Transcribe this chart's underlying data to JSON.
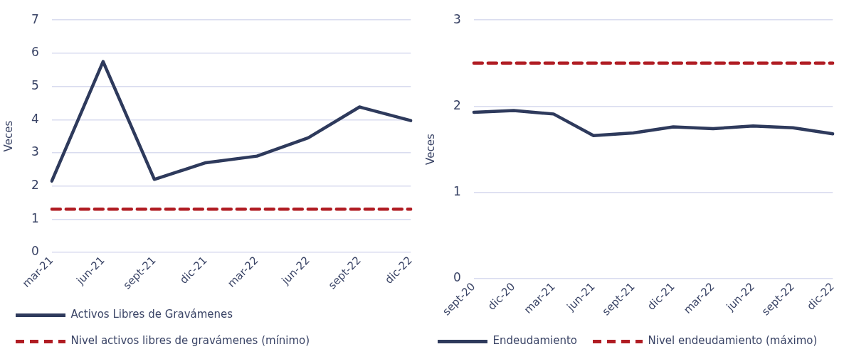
{
  "chart_data": [
    {
      "type": "line",
      "ylabel": "Veces",
      "categories": [
        "mar-21",
        "jun-21",
        "sept-21",
        "dic-21",
        "mar-22",
        "jun-22",
        "sept-22",
        "dic-22"
      ],
      "series": [
        {
          "name": "Activos Libres de Gravámenes",
          "color": "#2e3a5c",
          "values": [
            2.15,
            5.75,
            2.2,
            2.7,
            2.9,
            3.45,
            4.38,
            3.97
          ],
          "line_style": "solid"
        },
        {
          "name": "Nivel activos libres de gravámenes (mínimo)",
          "color": "#b01c23",
          "values": [
            1.3,
            1.3,
            1.3,
            1.3,
            1.3,
            1.3,
            1.3,
            1.3
          ],
          "line_style": "dashed"
        }
      ],
      "ylim": [
        0,
        7
      ],
      "yticks": [
        0,
        1,
        2,
        3,
        4,
        5,
        6,
        7
      ],
      "grid": "y",
      "legend": "bottom",
      "marker": "none"
    },
    {
      "type": "line",
      "ylabel": "Veces",
      "categories": [
        "sept-20",
        "dic-20",
        "mar-21",
        "jun-21",
        "sept-21",
        "dic-21",
        "mar-22",
        "jun-22",
        "sept-22",
        "dic-22"
      ],
      "series": [
        {
          "name": "Endeudamiento",
          "color": "#2e3a5c",
          "values": [
            1.93,
            1.95,
            1.91,
            1.66,
            1.69,
            1.76,
            1.74,
            1.77,
            1.75,
            1.68
          ],
          "line_style": "solid"
        },
        {
          "name": "Nivel endeudamiento (máximo)",
          "color": "#b01c23",
          "values": [
            2.5,
            2.5,
            2.5,
            2.5,
            2.5,
            2.5,
            2.5,
            2.5,
            2.5,
            2.5
          ],
          "line_style": "dashed"
        }
      ],
      "ylim": [
        0,
        3
      ],
      "yticks": [
        0,
        1,
        2,
        3
      ],
      "grid": "y",
      "legend": "bottom",
      "marker": "none"
    }
  ]
}
